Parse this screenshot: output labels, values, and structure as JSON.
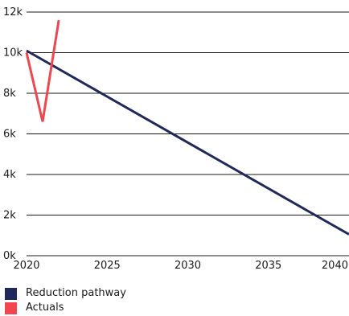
{
  "chart_data": {
    "type": "line",
    "x_ticks": [
      "2020",
      "2025",
      "2030",
      "2035",
      "2040"
    ],
    "y_ticks": [
      "0k",
      "2k",
      "4k",
      "6k",
      "8k",
      "10k",
      "12k"
    ],
    "xlim": [
      2020,
      2040
    ],
    "ylim": [
      0,
      12000
    ],
    "grid": "horizontal",
    "legend_position": "bottom-left",
    "series": [
      {
        "name": "Reduction pathway",
        "color": "#1f2a5a",
        "x": [
          2020,
          2040
        ],
        "y": [
          10100,
          1050
        ]
      },
      {
        "name": "Actuals",
        "color": "#f0464f",
        "x": [
          2020,
          2021,
          2022
        ],
        "y": [
          10000,
          6600,
          11600
        ]
      }
    ]
  }
}
